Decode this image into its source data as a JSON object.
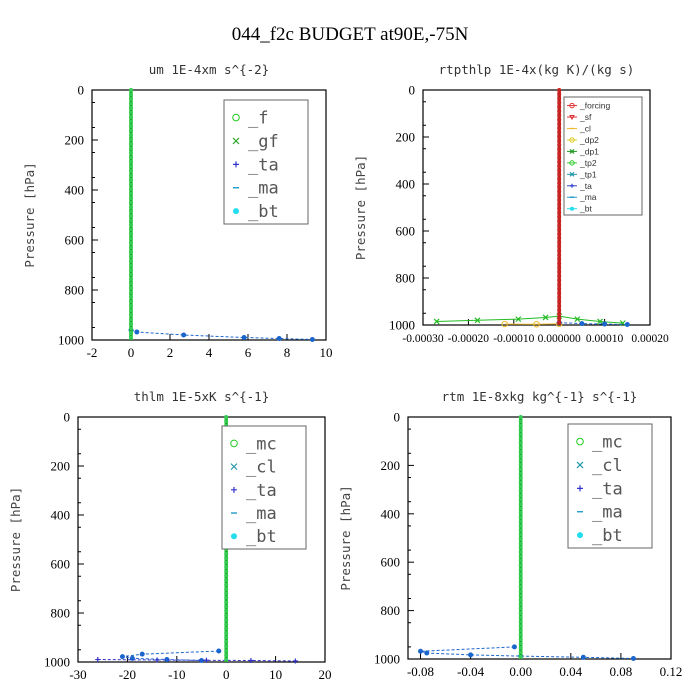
{
  "title": "044_f2c  BUDGET at90E,-75N",
  "chart_data": [
    {
      "type": "line",
      "title": "um   1E-4xm s^{-2}",
      "ylabel": "Pressure [hPa]",
      "xlim": [
        -2,
        10
      ],
      "ylim": [
        1000,
        0
      ],
      "xticks": [
        -2,
        0,
        2,
        4,
        6,
        8,
        10
      ],
      "xtick_labels": [
        "-2",
        "0",
        "2",
        "4",
        "6",
        "8",
        "10"
      ],
      "yticks": [
        0,
        200,
        400,
        600,
        800,
        1000
      ],
      "legend_style": "big",
      "legend": [
        {
          "label": "_f",
          "color": "#22cc22",
          "marker": "circle"
        },
        {
          "label": "_gf",
          "color": "#33aa33",
          "marker": "x"
        },
        {
          "label": "_ta",
          "color": "#3333cc",
          "marker": "plus"
        },
        {
          "label": "_ma",
          "color": "#2299cc",
          "marker": "dash"
        },
        {
          "label": "_bt",
          "color": "#22ddee",
          "marker": "dot"
        }
      ],
      "series": [
        {
          "color": "#1a66cc",
          "marker": "dot",
          "dash": true,
          "points": [
            [
              0,
              960
            ],
            [
              0.3,
              968
            ],
            [
              2.7,
              980
            ],
            [
              5.8,
              990
            ],
            [
              7.6,
              994
            ],
            [
              9.3,
              998
            ]
          ]
        },
        {
          "color": "#22cc22",
          "marker": "circle",
          "profile": true,
          "values": 0
        }
      ]
    },
    {
      "type": "line",
      "title": "rtpthlp   1E-4x(kg K)/(kg s)",
      "ylabel": "Pressure [hPa]",
      "xlim": [
        -0.0003,
        0.0002
      ],
      "ylim": [
        1000,
        0
      ],
      "xticks": [
        -0.0003,
        -0.0002,
        -0.0001,
        0,
        0.0001,
        0.0002
      ],
      "xtick_labels": [
        "-0.00030",
        "-0.00020",
        "-0.00010",
        "0.000000",
        "0.00010",
        "0.00020"
      ],
      "yticks": [
        0,
        200,
        400,
        600,
        800,
        1000
      ],
      "legend_style": "small",
      "legend": [
        {
          "label": "_forcing",
          "color": "#dd3333",
          "marker": "circle"
        },
        {
          "label": "_sf",
          "color": "#dd3333",
          "marker": "triangle"
        },
        {
          "label": "_cl",
          "color": "#eebb33",
          "marker": "dash"
        },
        {
          "label": "_dp2",
          "color": "#ddcc22",
          "marker": "circle"
        },
        {
          "label": "_dp1",
          "color": "#229922",
          "marker": "x"
        },
        {
          "label": "_tp2",
          "color": "#33cc33",
          "marker": "circle"
        },
        {
          "label": "_tp1",
          "color": "#2299aa",
          "marker": "x"
        },
        {
          "label": "_ta",
          "color": "#3344cc",
          "marker": "plus"
        },
        {
          "label": "_ma",
          "color": "#2299cc",
          "marker": "dash"
        },
        {
          "label": "_bt",
          "color": "#22ddee",
          "marker": "dot"
        }
      ],
      "series": [
        {
          "color": "#22bb22",
          "marker": "x",
          "dash": false,
          "points": [
            [
              -0.00027,
              985
            ],
            [
              -0.00018,
              980
            ],
            [
              -9e-05,
              975
            ],
            [
              -3e-05,
              968
            ],
            [
              0,
              962
            ],
            [
              4e-05,
              975
            ],
            [
              9e-05,
              985
            ],
            [
              0.00014,
              992
            ]
          ]
        },
        {
          "color": "#eebb33",
          "marker": "circle",
          "dash": false,
          "points": [
            [
              -0.00012,
              996
            ],
            [
              -5e-05,
              997
            ],
            [
              0,
              995
            ]
          ]
        },
        {
          "color": "#1a66cc",
          "marker": "dot",
          "dash": true,
          "points": [
            [
              0,
              990
            ],
            [
              5e-05,
              994
            ],
            [
              0.0001,
              996
            ],
            [
              0.00015,
              998
            ]
          ]
        },
        {
          "color": "#cc2222",
          "marker": "circle",
          "profile": true,
          "values": 0
        }
      ]
    },
    {
      "type": "line",
      "title": "thlm   1E-5xK s^{-1}",
      "ylabel": "Pressure [hPa]",
      "xlim": [
        -30,
        20
      ],
      "ylim": [
        1000,
        0
      ],
      "xticks": [
        -30,
        -20,
        -10,
        0,
        10,
        20
      ],
      "xtick_labels": [
        "-30",
        "-20",
        "-10",
        "0",
        "10",
        "20"
      ],
      "yticks": [
        0,
        200,
        400,
        600,
        800,
        1000
      ],
      "legend_style": "big",
      "legend": [
        {
          "label": "_mc",
          "color": "#22cc22",
          "marker": "circle"
        },
        {
          "label": "_cl",
          "color": "#2299aa",
          "marker": "x"
        },
        {
          "label": "_ta",
          "color": "#3333cc",
          "marker": "plus"
        },
        {
          "label": "_ma",
          "color": "#2299cc",
          "marker": "dash"
        },
        {
          "label": "_bt",
          "color": "#22ddee",
          "marker": "dot"
        }
      ],
      "series": [
        {
          "color": "#1a66cc",
          "marker": "dot",
          "dash": true,
          "points": [
            [
              -1.5,
              955
            ],
            [
              -17,
              968
            ],
            [
              -21,
              978
            ],
            [
              -19,
              985
            ],
            [
              -12,
              990
            ],
            [
              -5,
              994
            ]
          ]
        },
        {
          "color": "#3333cc",
          "marker": "plus",
          "dash": true,
          "points": [
            [
              -26,
              990
            ],
            [
              -14,
              992
            ],
            [
              -4,
              993
            ],
            [
              5,
              994
            ],
            [
              14,
              996
            ]
          ]
        },
        {
          "color": "#22cc22",
          "marker": "circle",
          "profile": true,
          "values": 0
        }
      ]
    },
    {
      "type": "line",
      "title": "rtm   1E-8xkg kg^{-1} s^{-1}",
      "ylabel": "Pressure [hPa]",
      "xlim": [
        -0.09,
        0.12
      ],
      "ylim": [
        1000,
        0
      ],
      "xticks": [
        -0.08,
        -0.04,
        0,
        0.04,
        0.08,
        0.12
      ],
      "xtick_labels": [
        "-0.08",
        "-0.04",
        "0.00",
        "0.04",
        "0.08",
        "0.12"
      ],
      "yticks": [
        0,
        200,
        400,
        600,
        800,
        1000
      ],
      "legend_style": "big",
      "legend": [
        {
          "label": "_mc",
          "color": "#22cc22",
          "marker": "circle"
        },
        {
          "label": "_cl",
          "color": "#2299aa",
          "marker": "x"
        },
        {
          "label": "_ta",
          "color": "#3333cc",
          "marker": "plus"
        },
        {
          "label": "_ma",
          "color": "#2299cc",
          "marker": "dash"
        },
        {
          "label": "_bt",
          "color": "#22ddee",
          "marker": "dot"
        }
      ],
      "series": [
        {
          "color": "#1a66cc",
          "marker": "dot",
          "dash": true,
          "points": [
            [
              -0.005,
              950
            ],
            [
              -0.08,
              968
            ],
            [
              -0.075,
              975
            ],
            [
              -0.04,
              983
            ],
            [
              0,
              988
            ],
            [
              0.05,
              993
            ],
            [
              0.09,
              998
            ]
          ]
        },
        {
          "color": "#22cc22",
          "marker": "circle",
          "profile": true,
          "values": 0
        }
      ]
    }
  ]
}
